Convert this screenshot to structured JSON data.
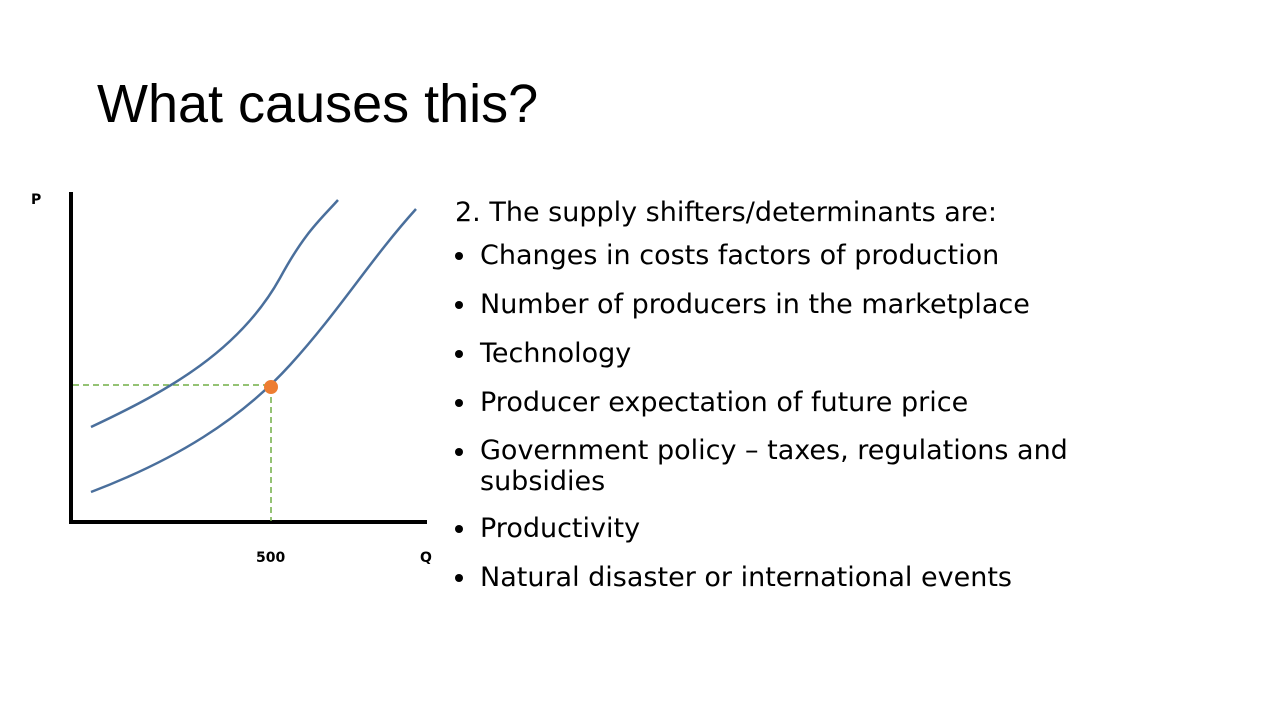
{
  "title": "What causes this?",
  "diagram": {
    "y_axis_label": "P",
    "x_axis_label": "Q",
    "x_tick_label": "500",
    "curve_color": "#4A6F9C",
    "guide_color": "#70AD47",
    "point_color": "#ED7D31"
  },
  "content": {
    "intro": "2. The supply shifters/determinants are:",
    "bullets": [
      "Changes in costs factors of production",
      "Number of producers in the marketplace",
      "Technology",
      "Producer expectation of future price",
      "Government policy – taxes, regulations and subsidies",
      "Productivity",
      "Natural disaster or international events"
    ]
  }
}
